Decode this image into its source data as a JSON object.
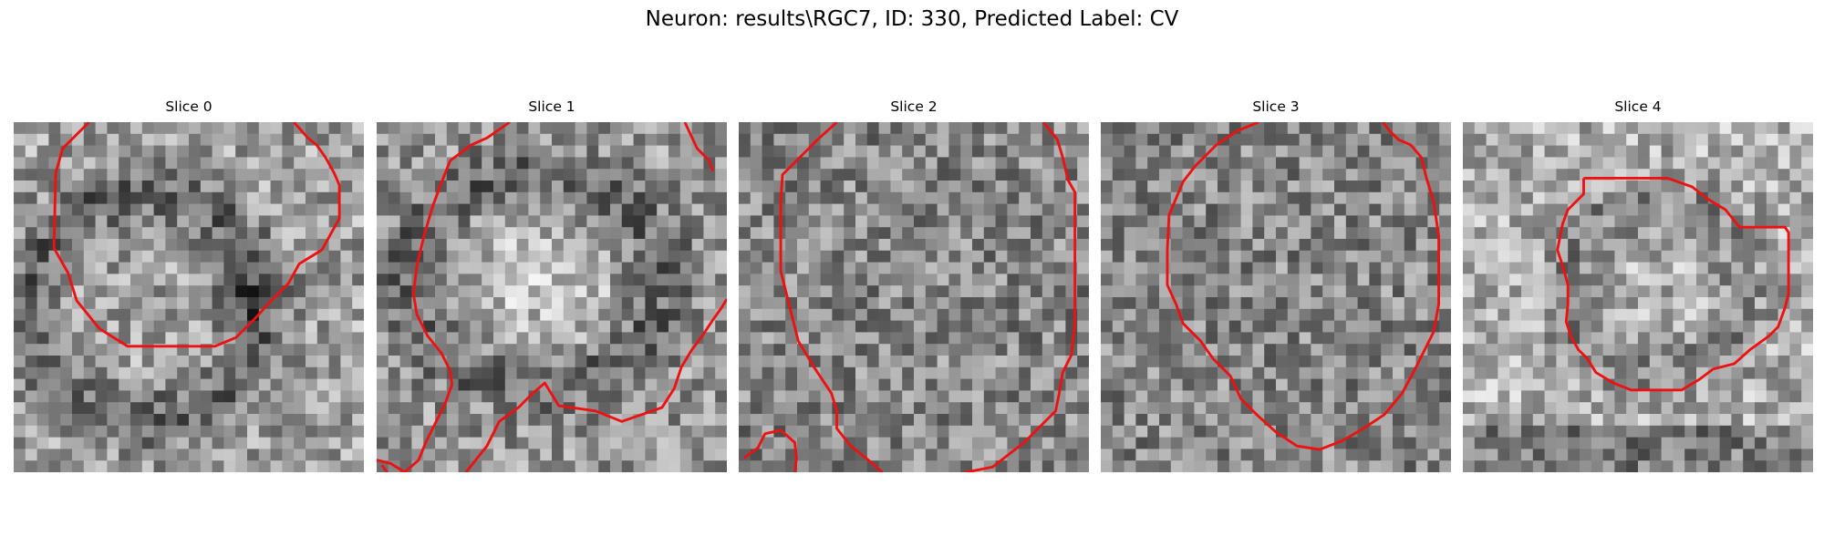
{
  "figure": {
    "title": "Neuron: results\\RGC7, ID: 330, Predicted Label: CV",
    "contour_color": "#ee1111"
  },
  "panels": [
    {
      "title": "Slice 0",
      "seed": 11,
      "pattern": "ring",
      "contour": [
        [
          4.3,
          0
        ],
        [
          2.8,
          1.5
        ],
        [
          2.4,
          2.9
        ],
        [
          2.3,
          7.2
        ],
        [
          3.1,
          8.6
        ],
        [
          3.6,
          10.2
        ],
        [
          4.9,
          11.8
        ],
        [
          6.5,
          12.8
        ],
        [
          11.5,
          12.8
        ],
        [
          12.7,
          12.3
        ],
        [
          13.8,
          11.2
        ],
        [
          14.7,
          10.2
        ],
        [
          15.7,
          9.2
        ],
        [
          16.3,
          8.1
        ],
        [
          17.6,
          7.3
        ],
        [
          18.6,
          5.5
        ],
        [
          18.6,
          3.6
        ],
        [
          18.3,
          2.9
        ],
        [
          17.8,
          2.0
        ],
        [
          17.3,
          1.3
        ],
        [
          16.8,
          0.9
        ],
        [
          16.0,
          0
        ]
      ]
    },
    {
      "title": "Slice 1",
      "seed": 23,
      "pattern": "body",
      "contour": [
        [
          7.6,
          0
        ],
        [
          6.3,
          0.9
        ],
        [
          5.4,
          1.3
        ],
        [
          4.2,
          2.2
        ],
        [
          3.8,
          3.2
        ],
        [
          3.2,
          4.8
        ],
        [
          2.7,
          6.5
        ],
        [
          2.3,
          8.2
        ],
        [
          2.1,
          9.8
        ],
        [
          2.3,
          11.0
        ],
        [
          2.9,
          12.2
        ],
        [
          3.7,
          13.2
        ],
        [
          4.2,
          14.2
        ],
        [
          4.3,
          15.0
        ],
        [
          3.9,
          16.1
        ],
        [
          3.3,
          17.3
        ],
        [
          2.8,
          18.3
        ],
        [
          2.4,
          19.3
        ],
        [
          1.6,
          20
        ],
        [
          0.8,
          19.5
        ],
        [
          0,
          19.3
        ]
      ]
    },
    {
      "title": "Slice 2",
      "seed": 37,
      "pattern": "noise",
      "contour": [
        [
          5.6,
          0
        ],
        [
          4.5,
          1.0
        ],
        [
          3.6,
          1.9
        ],
        [
          2.5,
          3.0
        ],
        [
          2.4,
          4.5
        ],
        [
          2.4,
          6.5
        ],
        [
          2.4,
          8.5
        ],
        [
          2.9,
          10.5
        ],
        [
          3.4,
          12.5
        ],
        [
          4.3,
          14.0
        ],
        [
          5.3,
          15.5
        ],
        [
          5.6,
          16.5
        ],
        [
          5.6,
          17.5
        ],
        [
          6.4,
          18.5
        ],
        [
          7.4,
          19.3
        ],
        [
          8.2,
          20
        ]
      ]
    },
    {
      "title": "Slice 3",
      "seed": 53,
      "pattern": "noise",
      "contour": [
        [
          9.0,
          0
        ],
        [
          7.8,
          0.5
        ],
        [
          6.6,
          1.3
        ],
        [
          5.4,
          2.5
        ],
        [
          4.7,
          3.4
        ],
        [
          3.9,
          5.3
        ],
        [
          3.8,
          7.3
        ],
        [
          3.8,
          9.3
        ],
        [
          4.3,
          10.4
        ],
        [
          4.7,
          11.5
        ],
        [
          5.7,
          12.5
        ],
        [
          6.4,
          13.5
        ],
        [
          7.4,
          14.5
        ],
        [
          8.0,
          15.8
        ],
        [
          9.0,
          16.8
        ],
        [
          10.0,
          17.7
        ],
        [
          11.2,
          18.5
        ],
        [
          12.5,
          18.7
        ],
        [
          13.8,
          18.2
        ],
        [
          15.0,
          17.5
        ],
        [
          16.2,
          16.7
        ],
        [
          17.2,
          15.5
        ],
        [
          17.9,
          14.2
        ],
        [
          18.5,
          13.0
        ],
        [
          19.0,
          12.0
        ],
        [
          19.3,
          10.4
        ],
        [
          19.3,
          8.4
        ],
        [
          19.3,
          6.5
        ],
        [
          19.0,
          4.5
        ],
        [
          18.6,
          3.2
        ],
        [
          18.3,
          2.0
        ],
        [
          17.7,
          1.3
        ],
        [
          17.0,
          1.0
        ],
        [
          16.5,
          0.5
        ],
        [
          16.1,
          0
        ]
      ]
    },
    {
      "title": "Slice 4",
      "seed": 71,
      "pattern": "soma",
      "contour": [
        [
          6.9,
          3.2
        ],
        [
          11.7,
          3.2
        ],
        [
          13.1,
          3.7
        ],
        [
          14.0,
          4.4
        ],
        [
          15.0,
          5.0
        ],
        [
          15.8,
          6.0
        ],
        [
          18.4,
          6.0
        ],
        [
          18.6,
          6.3
        ],
        [
          18.6,
          9.8
        ],
        [
          18.4,
          10.6
        ],
        [
          18.0,
          11.7
        ],
        [
          17.5,
          12.2
        ],
        [
          16.4,
          13.0
        ],
        [
          15.5,
          13.8
        ],
        [
          14.3,
          14.1
        ],
        [
          13.5,
          14.7
        ],
        [
          12.5,
          15.3
        ],
        [
          10.6,
          15.3
        ],
        [
          9.6,
          15.3
        ],
        [
          8.6,
          14.9
        ],
        [
          7.6,
          14.3
        ],
        [
          7.1,
          13.5
        ],
        [
          6.6,
          13.0
        ],
        [
          6.2,
          12.3
        ],
        [
          5.9,
          11.4
        ],
        [
          6.0,
          10.4
        ],
        [
          6.0,
          9.3
        ],
        [
          5.7,
          8.2
        ],
        [
          5.4,
          7.3
        ],
        [
          5.7,
          5.8
        ],
        [
          6.0,
          5.0
        ],
        [
          6.9,
          4.1
        ],
        [
          6.9,
          3.2
        ]
      ]
    }
  ],
  "extra_contours": {
    "0": [],
    "1": [
      [
        [
          17.6,
          0
        ],
        [
          18.3,
          1.5
        ],
        [
          19.0,
          2.2
        ],
        [
          19.2,
          2.8
        ]
      ],
      [
        [
          5.1,
          20
        ],
        [
          6.3,
          18.5
        ],
        [
          7.0,
          17.1
        ],
        [
          8.1,
          16.3
        ],
        [
          8.8,
          15.6
        ],
        [
          9.6,
          14.9
        ],
        [
          10.4,
          16.2
        ],
        [
          12.5,
          16.5
        ],
        [
          14.0,
          17.1
        ],
        [
          16.3,
          16.3
        ],
        [
          17.0,
          15.2
        ],
        [
          17.4,
          14.0
        ],
        [
          18.0,
          13.0
        ],
        [
          18.6,
          12.2
        ],
        [
          19.2,
          11.3
        ],
        [
          19.7,
          10.6
        ],
        [
          20,
          10.1
        ]
      ],
      [
        [
          0.3,
          19.6
        ],
        [
          0.6,
          20
        ]
      ]
    ],
    "2": [
      [
        [
          17.4,
          0
        ],
        [
          18.2,
          1.0
        ],
        [
          18.5,
          2.0
        ],
        [
          18.8,
          3.3
        ],
        [
          19.2,
          4.0
        ],
        [
          19.2,
          7.0
        ],
        [
          19.2,
          9.5
        ],
        [
          19.2,
          11.5
        ],
        [
          19.0,
          13.3
        ],
        [
          18.5,
          14.3
        ],
        [
          18.3,
          15.5
        ],
        [
          18.1,
          16.5
        ],
        [
          17.3,
          17.3
        ],
        [
          16.3,
          18.3
        ],
        [
          15.4,
          19.0
        ],
        [
          14.5,
          19.7
        ],
        [
          13.5,
          19.9
        ],
        [
          12.9,
          20
        ]
      ],
      [
        [
          0.3,
          19.2
        ],
        [
          1.1,
          18.6
        ],
        [
          1.5,
          17.8
        ],
        [
          2.4,
          17.6
        ],
        [
          3.2,
          18.3
        ],
        [
          3.3,
          19.2
        ],
        [
          3.2,
          20
        ]
      ]
    ],
    "3": [],
    "4": []
  }
}
